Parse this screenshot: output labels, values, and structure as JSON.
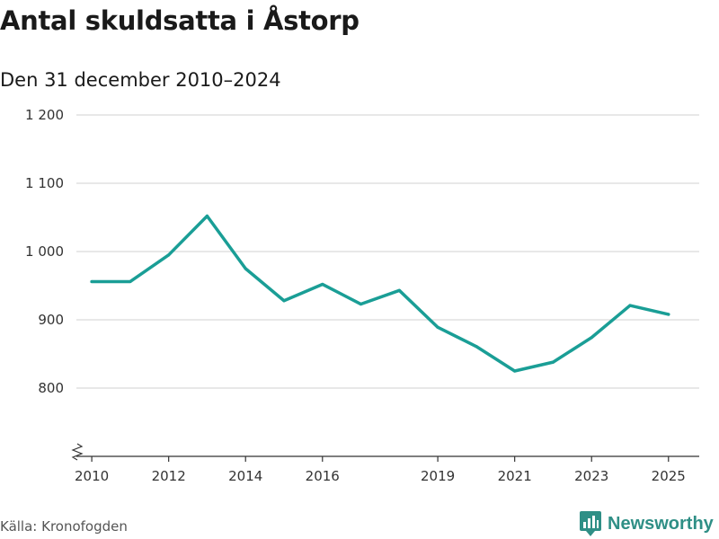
{
  "header": {
    "title": "Antal skuldsatta i Åstorp",
    "subtitle": "Den 31 december 2010–2024"
  },
  "footer": {
    "source": "Källa: Kronofogden",
    "brand": "Newsworthy"
  },
  "colors": {
    "line": "#1a9e96",
    "grid": "#d9d9d9",
    "axis": "#333333",
    "brand": "#2f8f86"
  },
  "chart_data": {
    "type": "line",
    "title": "Antal skuldsatta i Åstorp",
    "subtitle": "Den 31 december 2010–2024",
    "xlabel": "",
    "ylabel": "",
    "x": [
      2010,
      2011,
      2012,
      2013,
      2014,
      2015,
      2016,
      2017,
      2018,
      2019,
      2020,
      2021,
      2022,
      2023,
      2024,
      2025
    ],
    "series": [
      {
        "name": "Antal skuldsatta",
        "values": [
          956,
          956,
          995,
          1052,
          975,
          928,
          952,
          923,
          943,
          889,
          861,
          825,
          838,
          874,
          921,
          908
        ]
      }
    ],
    "xlim": [
      2009.6,
      2025.8
    ],
    "ylim": [
      700,
      1200
    ],
    "yticks": [
      800,
      900,
      1000,
      1100,
      1200
    ],
    "ytick_labels": [
      "800",
      "900",
      "1 000",
      "1 100",
      "1 200"
    ],
    "xticks": [
      2010,
      2012,
      2014,
      2016,
      2019,
      2021,
      2023,
      2025
    ],
    "xtick_labels": [
      "2010",
      "2012",
      "2014",
      "2016",
      "2019",
      "2021",
      "2023",
      "2025"
    ],
    "grid": true,
    "axis_break": true
  }
}
